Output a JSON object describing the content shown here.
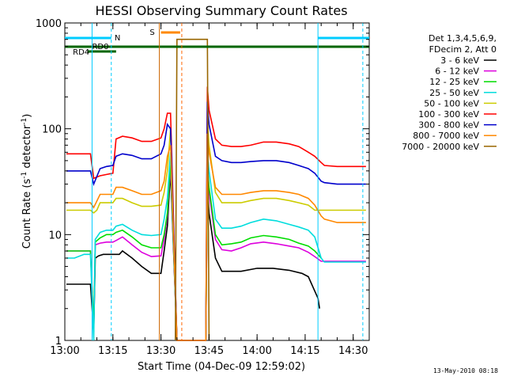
{
  "chart_data": {
    "type": "line",
    "title": "HESSI Observing Summary Count Rates",
    "xlabel": "Start Time (04-Dec-09 12:59:02)",
    "ylabel_main": "Count Rate (s",
    "ylabel_sup1": "-1",
    "ylabel_mid": " detector",
    "ylabel_sup2": "-1",
    "ylabel_end": ")",
    "yscale": "log",
    "ylim": [
      1,
      1000
    ],
    "xlim_min": [
      0,
      95
    ],
    "x_tick_labels": [
      "13:00",
      "13:15",
      "13:30",
      "13:45",
      "14:00",
      "14:15",
      "14:30"
    ],
    "x_tick_minutes": [
      0,
      15,
      30,
      45,
      60,
      75,
      90
    ],
    "y_tick_labels": [
      "1",
      "10",
      "100",
      "1000"
    ],
    "y_tick_values": [
      1,
      10,
      100,
      1000
    ],
    "legend": {
      "header1": "Det 1,3,4,5,6,9,",
      "header2": "FDecim 2, Att 0"
    },
    "series": [
      {
        "name": "3 - 6 keV",
        "color": "#000000",
        "points": [
          [
            0.5,
            3.4
          ],
          [
            8,
            3.4
          ],
          [
            9,
            1.2
          ],
          [
            9.5,
            6
          ],
          [
            10.5,
            6.3
          ],
          [
            12,
            6.5
          ],
          [
            15,
            6.5
          ],
          [
            17,
            6.5
          ],
          [
            18,
            7
          ],
          [
            21,
            6
          ],
          [
            24,
            5
          ],
          [
            27,
            4.3
          ],
          [
            30,
            4.3
          ],
          [
            31,
            7
          ],
          [
            32,
            12
          ],
          [
            33,
            40
          ],
          [
            35,
            1
          ],
          [
            44,
            1
          ],
          [
            44.5,
            30
          ],
          [
            45,
            16
          ],
          [
            47,
            6
          ],
          [
            49,
            4.5
          ],
          [
            55,
            4.5
          ],
          [
            60,
            4.8
          ],
          [
            65,
            4.8
          ],
          [
            70,
            4.6
          ],
          [
            74,
            4.3
          ],
          [
            76,
            4
          ],
          [
            79,
            2.5
          ],
          [
            79.5,
            2
          ]
        ]
      },
      {
        "name": "6 - 12 keV",
        "color": "#dd00dd",
        "points": [
          [
            0.5,
            7
          ],
          [
            8,
            7
          ],
          [
            9,
            1.3
          ],
          [
            9.5,
            8
          ],
          [
            11,
            8.3
          ],
          [
            13,
            8.5
          ],
          [
            15,
            8.5
          ],
          [
            16,
            8.8
          ],
          [
            18,
            9.5
          ],
          [
            21,
            8
          ],
          [
            24,
            6.8
          ],
          [
            27,
            6.2
          ],
          [
            30,
            6.3
          ],
          [
            31,
            9
          ],
          [
            32,
            15
          ],
          [
            33,
            45
          ],
          [
            35,
            1
          ],
          [
            44,
            1
          ],
          [
            44.5,
            40
          ],
          [
            45,
            25
          ],
          [
            47,
            9
          ],
          [
            49,
            7.2
          ],
          [
            52,
            7
          ],
          [
            55,
            7.5
          ],
          [
            58,
            8.2
          ],
          [
            62,
            8.5
          ],
          [
            66,
            8.2
          ],
          [
            70,
            7.8
          ],
          [
            73,
            7.5
          ],
          [
            76,
            6.8
          ],
          [
            78,
            6.2
          ],
          [
            80,
            5.6
          ],
          [
            81,
            5.6
          ],
          [
            85,
            5.6
          ],
          [
            90,
            5.6
          ],
          [
            94,
            5.6
          ]
        ]
      },
      {
        "name": "12 - 25 keV",
        "color": "#00dd00",
        "points": [
          [
            0.5,
            7
          ],
          [
            8,
            7
          ],
          [
            9,
            1.3
          ],
          [
            9.5,
            8.5
          ],
          [
            11,
            9.3
          ],
          [
            13,
            10
          ],
          [
            15,
            10
          ],
          [
            16,
            10.5
          ],
          [
            18,
            11
          ],
          [
            21,
            9.5
          ],
          [
            24,
            8
          ],
          [
            27,
            7.5
          ],
          [
            30,
            7.5
          ],
          [
            31,
            10
          ],
          [
            32,
            16
          ],
          [
            33,
            50
          ],
          [
            35,
            1
          ],
          [
            44,
            1
          ],
          [
            44.5,
            45
          ],
          [
            45,
            28
          ],
          [
            47,
            10
          ],
          [
            49,
            8
          ],
          [
            52,
            8.2
          ],
          [
            55,
            8.5
          ],
          [
            58,
            9.3
          ],
          [
            62,
            9.8
          ],
          [
            66,
            9.5
          ],
          [
            70,
            9
          ],
          [
            73,
            8.3
          ],
          [
            76,
            7.8
          ],
          [
            78,
            7
          ],
          [
            80,
            6
          ]
        ]
      },
      {
        "name": "25 - 50 keV",
        "color": "#00dddd",
        "points": [
          [
            0.5,
            6
          ],
          [
            3,
            6
          ],
          [
            6,
            6.5
          ],
          [
            8,
            6.5
          ],
          [
            9,
            1
          ],
          [
            9.5,
            9
          ],
          [
            11,
            10.5
          ],
          [
            13,
            11
          ],
          [
            15,
            11
          ],
          [
            16,
            12
          ],
          [
            18,
            12.5
          ],
          [
            21,
            11
          ],
          [
            24,
            10
          ],
          [
            27,
            9.8
          ],
          [
            30,
            10
          ],
          [
            31,
            14
          ],
          [
            32,
            22
          ],
          [
            33,
            60
          ],
          [
            35,
            1
          ],
          [
            44,
            1
          ],
          [
            44.5,
            60
          ],
          [
            45,
            40
          ],
          [
            47,
            14
          ],
          [
            49,
            11.5
          ],
          [
            52,
            11.5
          ],
          [
            55,
            12
          ],
          [
            58,
            13
          ],
          [
            62,
            14
          ],
          [
            66,
            13.5
          ],
          [
            70,
            12.5
          ],
          [
            73,
            11.8
          ],
          [
            76,
            11
          ],
          [
            78,
            9.5
          ],
          [
            80,
            6
          ],
          [
            81,
            5.5
          ],
          [
            85,
            5.5
          ],
          [
            90,
            5.5
          ],
          [
            94,
            5.5
          ]
        ]
      },
      {
        "name": "50 - 100 keV",
        "color": "#cccc00",
        "points": [
          [
            0.5,
            17
          ],
          [
            8,
            17
          ],
          [
            9,
            16
          ],
          [
            10,
            17
          ],
          [
            11,
            20
          ],
          [
            13,
            20
          ],
          [
            15,
            20
          ],
          [
            16,
            22
          ],
          [
            18,
            22
          ],
          [
            21,
            20
          ],
          [
            24,
            18.5
          ],
          [
            27,
            18.5
          ],
          [
            30,
            19
          ],
          [
            31,
            25
          ],
          [
            32,
            40
          ],
          [
            33,
            100
          ],
          [
            35,
            1
          ],
          [
            44,
            1
          ],
          [
            44.5,
            120
          ],
          [
            45,
            70
          ],
          [
            47,
            25
          ],
          [
            49,
            20
          ],
          [
            52,
            20
          ],
          [
            55,
            20
          ],
          [
            58,
            21
          ],
          [
            62,
            22
          ],
          [
            66,
            22
          ],
          [
            70,
            21
          ],
          [
            73,
            20
          ],
          [
            76,
            19
          ],
          [
            78,
            17
          ],
          [
            80,
            17
          ],
          [
            81,
            17
          ],
          [
            85,
            17
          ],
          [
            90,
            17
          ],
          [
            94,
            17
          ]
        ]
      },
      {
        "name": "100 - 300 keV",
        "color": "#ff0000",
        "points": [
          [
            0.5,
            58
          ],
          [
            8,
            58
          ],
          [
            9,
            34
          ],
          [
            11,
            36
          ],
          [
            13,
            37
          ],
          [
            15,
            38
          ],
          [
            16,
            80
          ],
          [
            18,
            85
          ],
          [
            21,
            82
          ],
          [
            24,
            76
          ],
          [
            27,
            76
          ],
          [
            30,
            82
          ],
          [
            31,
            100
          ],
          [
            32,
            140
          ],
          [
            33,
            140
          ],
          [
            35,
            1
          ],
          [
            44,
            1
          ],
          [
            44.5,
            250
          ],
          [
            45,
            150
          ],
          [
            47,
            80
          ],
          [
            49,
            70
          ],
          [
            52,
            68
          ],
          [
            55,
            68
          ],
          [
            58,
            70
          ],
          [
            62,
            75
          ],
          [
            66,
            75
          ],
          [
            70,
            72
          ],
          [
            73,
            68
          ],
          [
            76,
            60
          ],
          [
            78,
            55
          ],
          [
            80,
            48
          ],
          [
            81,
            45
          ],
          [
            85,
            44
          ],
          [
            90,
            44
          ],
          [
            94,
            44
          ]
        ]
      },
      {
        "name": "300 - 800 keV",
        "color": "#0000cc",
        "points": [
          [
            0.5,
            40
          ],
          [
            8,
            40
          ],
          [
            9,
            30
          ],
          [
            11,
            42
          ],
          [
            13,
            44
          ],
          [
            15,
            45
          ],
          [
            16,
            55
          ],
          [
            18,
            58
          ],
          [
            21,
            56
          ],
          [
            24,
            52
          ],
          [
            27,
            52
          ],
          [
            30,
            58
          ],
          [
            31,
            70
          ],
          [
            32,
            110
          ],
          [
            33,
            100
          ],
          [
            35,
            1
          ],
          [
            44,
            1
          ],
          [
            44.5,
            180
          ],
          [
            45,
            110
          ],
          [
            47,
            55
          ],
          [
            49,
            50
          ],
          [
            52,
            48
          ],
          [
            55,
            48
          ],
          [
            58,
            49
          ],
          [
            62,
            50
          ],
          [
            66,
            50
          ],
          [
            70,
            48
          ],
          [
            73,
            45
          ],
          [
            76,
            42
          ],
          [
            78,
            38
          ],
          [
            80,
            32
          ],
          [
            81,
            31
          ],
          [
            85,
            30
          ],
          [
            90,
            30
          ],
          [
            94,
            30
          ]
        ]
      },
      {
        "name": "800 - 7000 keV",
        "color": "#ff8800",
        "points": [
          [
            0.5,
            20
          ],
          [
            8,
            20
          ],
          [
            9,
            18
          ],
          [
            11,
            24
          ],
          [
            13,
            24
          ],
          [
            15,
            24
          ],
          [
            16,
            28
          ],
          [
            18,
            28
          ],
          [
            21,
            26
          ],
          [
            24,
            24
          ],
          [
            27,
            24
          ],
          [
            30,
            26
          ],
          [
            31,
            32
          ],
          [
            32,
            55
          ],
          [
            33,
            70
          ],
          [
            35,
            1
          ],
          [
            44,
            1
          ],
          [
            44.5,
            90
          ],
          [
            45,
            60
          ],
          [
            47,
            28
          ],
          [
            49,
            24
          ],
          [
            52,
            24
          ],
          [
            55,
            24
          ],
          [
            58,
            25
          ],
          [
            62,
            26
          ],
          [
            66,
            26
          ],
          [
            70,
            25
          ],
          [
            73,
            24
          ],
          [
            76,
            22
          ],
          [
            78,
            19
          ],
          [
            80,
            15
          ],
          [
            81,
            14
          ],
          [
            85,
            13
          ],
          [
            90,
            13
          ],
          [
            94,
            13
          ]
        ]
      },
      {
        "name": "7000 - 20000 keV",
        "color": "#996600",
        "points": [
          [
            34.5,
            1
          ],
          [
            35,
            700
          ],
          [
            44.5,
            700
          ],
          [
            45,
            1
          ]
        ]
      }
    ],
    "flags": {
      "saa_label": "S",
      "night_label": "N",
      "rd0_label": "RD0",
      "rd4_label": "RD4"
    },
    "timestamp": "13-May-2010 08:18"
  }
}
